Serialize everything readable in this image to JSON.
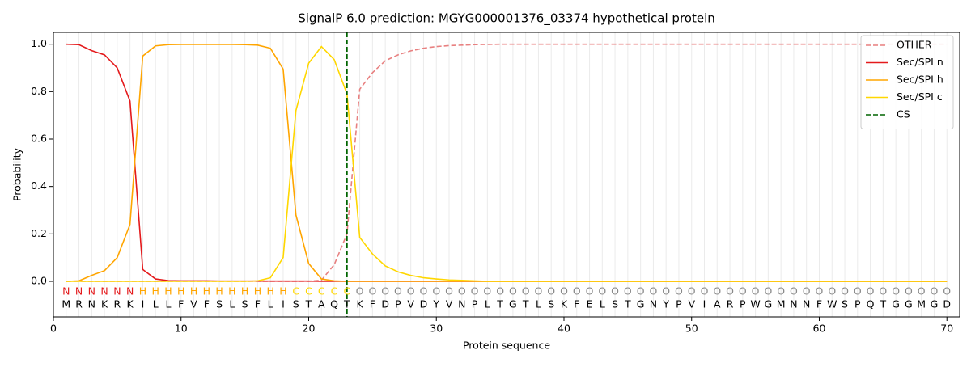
{
  "chart_data": {
    "type": "line",
    "title": "SignalP 6.0 prediction: MGYG000001376_03374 hypothetical protein",
    "xlabel": "Protein sequence",
    "ylabel": "Probability",
    "xlim": [
      0,
      71
    ],
    "ylim": [
      -0.15,
      1.05
    ],
    "xticks": [
      0,
      10,
      20,
      30,
      40,
      50,
      60,
      70
    ],
    "yticks": [
      {
        "value": 0,
        "label": "0.0"
      },
      {
        "value": 0.2,
        "label": "0.2"
      },
      {
        "value": 0.4,
        "label": "0.4"
      },
      {
        "value": 0.6,
        "label": "0.6"
      },
      {
        "value": 0.8,
        "label": "0.8"
      },
      {
        "value": 1,
        "label": "1.0"
      }
    ],
    "legend": "upper right",
    "x": [
      1,
      2,
      3,
      4,
      5,
      6,
      7,
      8,
      9,
      10,
      11,
      12,
      13,
      14,
      15,
      16,
      17,
      18,
      19,
      20,
      21,
      22,
      23,
      24,
      25,
      26,
      27,
      28,
      29,
      30,
      31,
      32,
      33,
      34,
      35,
      36,
      37,
      38,
      39,
      40,
      41,
      42,
      43,
      44,
      45,
      46,
      47,
      48,
      49,
      50,
      51,
      52,
      53,
      54,
      55,
      56,
      57,
      58,
      59,
      60,
      61,
      62,
      63,
      64,
      65,
      66,
      67,
      68,
      69,
      70
    ],
    "series": [
      {
        "name": "OTHER",
        "color": "#e88080",
        "dash": true,
        "values": [
          0,
          0,
          0,
          0,
          0,
          0,
          0,
          0,
          0,
          0,
          0,
          0,
          0,
          0,
          0,
          0,
          0,
          0,
          0,
          0,
          0.005,
          0.07,
          0.2,
          0.81,
          0.88,
          0.93,
          0.955,
          0.972,
          0.983,
          0.99,
          0.994,
          0.996,
          0.998,
          0.999,
          1,
          1,
          1,
          1,
          1,
          1,
          1,
          1,
          1,
          1,
          1,
          1,
          1,
          1,
          1,
          1,
          1,
          1,
          1,
          1,
          1,
          1,
          1,
          1,
          1,
          1,
          1,
          1,
          1,
          1,
          1,
          1,
          1,
          1,
          1,
          1
        ]
      },
      {
        "name": "Sec/SPI n",
        "color": "#e41a1c",
        "values": [
          1,
          0.998,
          0.973,
          0.955,
          0.9,
          0.76,
          0.05,
          0.01,
          0.003,
          0.002,
          0.002,
          0.002,
          0.001,
          0.001,
          0.001,
          0.001,
          0.001,
          0.001,
          0.001,
          0.001,
          0,
          0,
          0,
          0,
          0,
          0,
          0,
          0,
          0,
          0,
          0,
          0,
          0,
          0,
          0,
          0,
          0,
          0,
          0,
          0,
          0,
          0,
          0,
          0,
          0,
          0,
          0,
          0,
          0,
          0,
          0,
          0,
          0,
          0,
          0,
          0,
          0,
          0,
          0,
          0,
          0,
          0,
          0,
          0,
          0,
          0,
          0,
          0,
          0,
          0
        ]
      },
      {
        "name": "Sec/SPI h",
        "color": "#ffa500",
        "values": [
          0,
          0.002,
          0.025,
          0.045,
          0.1,
          0.24,
          0.95,
          0.993,
          0.998,
          0.999,
          0.999,
          0.999,
          0.999,
          0.999,
          0.998,
          0.996,
          0.983,
          0.895,
          0.28,
          0.075,
          0.01,
          0.002,
          0,
          0,
          0,
          0,
          0,
          0,
          0,
          0,
          0,
          0,
          0,
          0,
          0,
          0,
          0,
          0,
          0,
          0,
          0,
          0,
          0,
          0,
          0,
          0,
          0,
          0,
          0,
          0,
          0,
          0,
          0,
          0,
          0,
          0,
          0,
          0,
          0,
          0,
          0,
          0,
          0,
          0,
          0,
          0,
          0,
          0,
          0,
          0
        ]
      },
      {
        "name": "Sec/SPI c",
        "color": "#ffd700",
        "values": [
          0,
          0,
          0,
          0,
          0,
          0,
          0,
          0,
          0,
          0,
          0,
          0,
          0,
          0,
          0,
          0.002,
          0.015,
          0.1,
          0.72,
          0.92,
          0.99,
          0.935,
          0.79,
          0.185,
          0.115,
          0.065,
          0.04,
          0.025,
          0.015,
          0.01,
          0.006,
          0.004,
          0.002,
          0,
          0,
          0,
          0,
          0,
          0,
          0,
          0,
          0,
          0,
          0,
          0,
          0,
          0,
          0,
          0,
          0,
          0,
          0,
          0,
          0,
          0,
          0,
          0,
          0,
          0,
          0,
          0,
          0,
          0,
          0,
          0,
          0,
          0,
          0,
          0,
          0
        ]
      }
    ],
    "cs": {
      "name": "CS",
      "x": 23,
      "color": "#006400"
    },
    "region_colors": {
      "N": "#e41a1c",
      "H": "#ffa500",
      "C": "#ffd700",
      "O": "#888888"
    },
    "regions": [
      "N",
      "N",
      "N",
      "N",
      "N",
      "N",
      "H",
      "H",
      "H",
      "H",
      "H",
      "H",
      "H",
      "H",
      "H",
      "H",
      "H",
      "H",
      "C",
      "C",
      "C",
      "C",
      "C",
      "O",
      "O",
      "O",
      "O",
      "O",
      "O",
      "O",
      "O",
      "O",
      "O",
      "O",
      "O",
      "O",
      "O",
      "O",
      "O",
      "O",
      "O",
      "O",
      "O",
      "O",
      "O",
      "O",
      "O",
      "O",
      "O",
      "O",
      "O",
      "O",
      "O",
      "O",
      "O",
      "O",
      "O",
      "O",
      "O",
      "O",
      "O",
      "O",
      "O",
      "O",
      "O",
      "O",
      "O",
      "O",
      "O",
      "O"
    ],
    "residues": [
      "M",
      "R",
      "N",
      "K",
      "R",
      "K",
      "I",
      "L",
      "L",
      "F",
      "V",
      "F",
      "S",
      "L",
      "S",
      "F",
      "L",
      "I",
      "S",
      "T",
      "A",
      "Q",
      "T",
      "K",
      "F",
      "D",
      "P",
      "V",
      "D",
      "Y",
      "V",
      "N",
      "P",
      "L",
      "T",
      "G",
      "T",
      "L",
      "S",
      "K",
      "F",
      "E",
      "L",
      "S",
      "T",
      "G",
      "N",
      "Y",
      "P",
      "V",
      "I",
      "A",
      "R",
      "P",
      "W",
      "G",
      "M",
      "N",
      "N",
      "F",
      "W",
      "S",
      "P",
      "Q",
      "T",
      "G",
      "G",
      "M",
      "G",
      "D"
    ]
  }
}
